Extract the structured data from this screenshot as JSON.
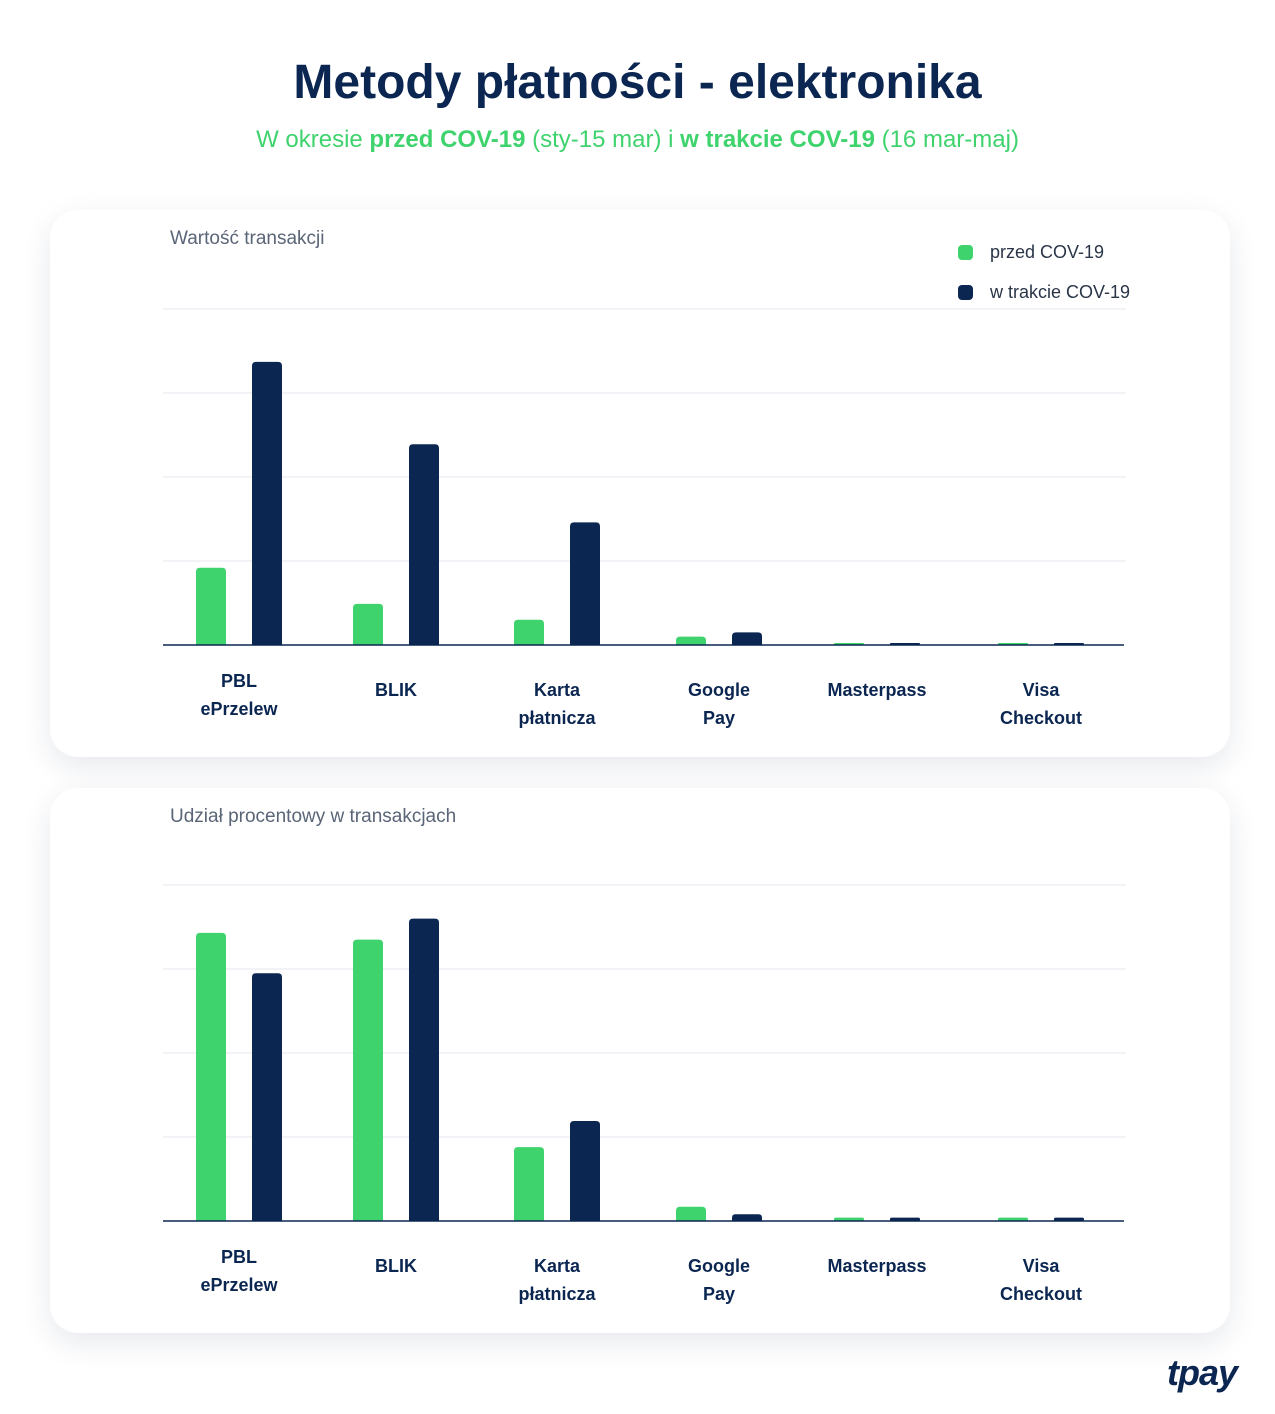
{
  "title": "Metody płatności - elektronika",
  "subtitle": {
    "p1": "W okresie ",
    "b1": "przed COV-19",
    "p2": " (sty-15 mar) i ",
    "b2": "w trakcie COV-19",
    "p3": " (16 mar-maj)"
  },
  "logo": "tpay",
  "colors": {
    "before": "#3fd36e",
    "during": "#0b2651"
  },
  "legend": [
    "przed COV-19",
    "w trakcie COV-19"
  ],
  "chart_data": [
    {
      "type": "bar",
      "title": "Wartość transakcji",
      "categories": [
        [
          "PBL",
          "ePrzelew"
        ],
        [
          "BLIK"
        ],
        [
          "Karta",
          "płatnicza"
        ],
        [
          "Google",
          "Pay"
        ],
        [
          "Masterpass"
        ],
        [
          "Visa",
          "Checkout"
        ]
      ],
      "series": [
        {
          "name": "przed COV-19",
          "values": [
            0.92,
            0.49,
            0.3,
            0.1,
            0.02,
            0.02
          ]
        },
        {
          "name": "w trakcie COV-19",
          "values": [
            3.37,
            2.39,
            1.46,
            0.15,
            0.02,
            0.02
          ]
        }
      ],
      "ylim": [
        0,
        4
      ],
      "grid": true,
      "legend_position": "top-right"
    },
    {
      "type": "bar",
      "title": "Udział procentowy w transakcjach",
      "categories": [
        [
          "PBL",
          "ePrzelew"
        ],
        [
          "BLIK"
        ],
        [
          "Karta",
          "płatnicza"
        ],
        [
          "Google",
          "Pay"
        ],
        [
          "Masterpass"
        ],
        [
          "Visa",
          "Checkout"
        ]
      ],
      "series": [
        {
          "name": "przed COV-19",
          "values": [
            3.43,
            3.35,
            0.88,
            0.17,
            0.04,
            0.04
          ]
        },
        {
          "name": "w trakcie COV-19",
          "values": [
            2.95,
            3.6,
            1.19,
            0.08,
            0.04,
            0.04
          ]
        }
      ],
      "ylim": [
        0,
        4
      ],
      "grid": true
    }
  ]
}
